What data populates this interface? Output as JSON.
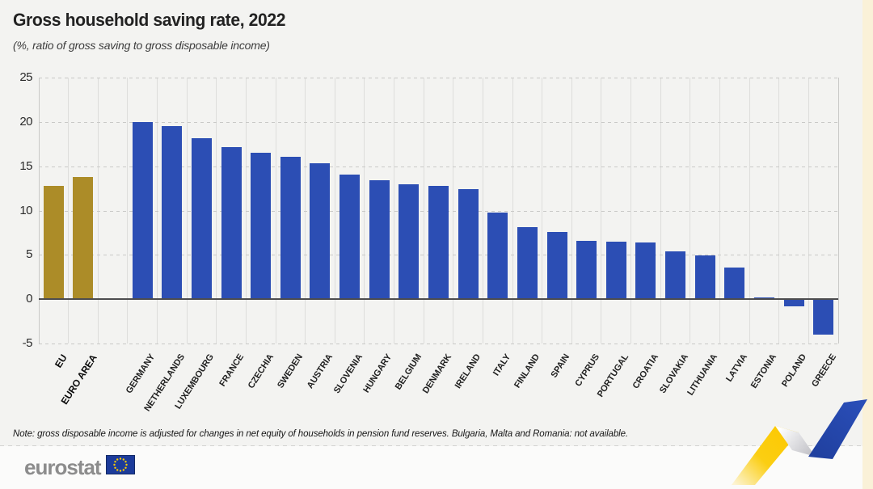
{
  "header": {
    "title": "Gross household saving rate, 2022",
    "subtitle": "(%, ratio of gross saving to gross disposable income)"
  },
  "note": {
    "text": "Note: gross disposable income is adjusted for changes in net equity of households in pension fund reserves. Bulgaria, Malta and Romania: not available."
  },
  "footer": {
    "logo_text": "eurostat"
  },
  "colors": {
    "background": "#f3f3f1",
    "footer_background": "#fbfbfa",
    "aggregate_bar": "#ac8c28",
    "country_bar": "#2c4eb4",
    "zero_line": "#4d4d4f",
    "gridline": "#c9c9c7",
    "flag_blue": "#1c3b9a",
    "star_yellow": "#ffcc00",
    "ribbon_yellow": "#fcc800",
    "ribbon_blue": "#2648b0",
    "logo_gray": "#8c8c8c"
  },
  "chart_data": {
    "type": "bar",
    "title": "Gross household saving rate, 2022",
    "subtitle": "(%, ratio of gross saving to gross disposable income)",
    "xlabel": "",
    "ylabel": "%",
    "ylim": [
      -5,
      25
    ],
    "yticks": [
      25,
      20,
      15,
      10,
      5,
      0,
      -5
    ],
    "grid": true,
    "legend_position": "none",
    "gap_after_index": 1,
    "bars": [
      {
        "label": "EU",
        "value": 12.8,
        "group": "aggregate"
      },
      {
        "label": "EURO AREA",
        "value": 13.8,
        "group": "aggregate"
      },
      {
        "label": "GERMANY",
        "value": 20.0,
        "group": "country"
      },
      {
        "label": "NETHERLANDS",
        "value": 19.5,
        "group": "country"
      },
      {
        "label": "LUXEMBOURG",
        "value": 18.2,
        "group": "country"
      },
      {
        "label": "FRANCE",
        "value": 17.2,
        "group": "country"
      },
      {
        "label": "CZECHIA",
        "value": 16.5,
        "group": "country"
      },
      {
        "label": "SWEDEN",
        "value": 16.1,
        "group": "country"
      },
      {
        "label": "AUSTRIA",
        "value": 15.3,
        "group": "country"
      },
      {
        "label": "SLOVENIA",
        "value": 14.1,
        "group": "country"
      },
      {
        "label": "HUNGARY",
        "value": 13.4,
        "group": "country"
      },
      {
        "label": "BELGIUM",
        "value": 13.0,
        "group": "country"
      },
      {
        "label": "DENMARK",
        "value": 12.8,
        "group": "country"
      },
      {
        "label": "IRELAND",
        "value": 12.4,
        "group": "country"
      },
      {
        "label": "ITALY",
        "value": 9.8,
        "group": "country"
      },
      {
        "label": "FINLAND",
        "value": 8.1,
        "group": "country"
      },
      {
        "label": "SPAIN",
        "value": 7.6,
        "group": "country"
      },
      {
        "label": "CYPRUS",
        "value": 6.6,
        "group": "country"
      },
      {
        "label": "PORTUGAL",
        "value": 6.5,
        "group": "country"
      },
      {
        "label": "CROATIA",
        "value": 6.4,
        "group": "country"
      },
      {
        "label": "SLOVAKIA",
        "value": 5.4,
        "group": "country"
      },
      {
        "label": "LITHUANIA",
        "value": 4.9,
        "group": "country"
      },
      {
        "label": "LATVIA",
        "value": 3.6,
        "group": "country"
      },
      {
        "label": "ESTONIA",
        "value": 0.2,
        "group": "country"
      },
      {
        "label": "POLAND",
        "value": -0.8,
        "group": "country"
      },
      {
        "label": "GREECE",
        "value": -4.0,
        "group": "country"
      }
    ]
  }
}
